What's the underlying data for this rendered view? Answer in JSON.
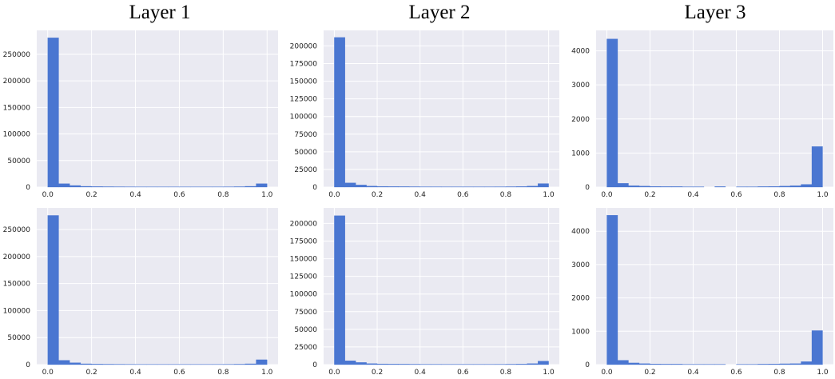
{
  "column_titles": [
    "Layer 1",
    "Layer 2",
    "Layer 3"
  ],
  "colors": {
    "bar": "#4a76d1",
    "plot_bg": "#eaeaf2",
    "grid": "#ffffff"
  },
  "chart_data": [
    {
      "type": "bar",
      "title": "",
      "xlabel": "",
      "ylabel": "",
      "grid": true,
      "bin_edges": [
        0.0,
        0.05,
        0.1,
        0.15,
        0.2,
        0.25,
        0.3,
        0.35,
        0.4,
        0.45,
        0.5,
        0.55,
        0.6,
        0.65,
        0.7,
        0.75,
        0.8,
        0.85,
        0.9,
        0.95,
        1.0
      ],
      "values": [
        281000,
        6500,
        3000,
        1500,
        1000,
        800,
        700,
        600,
        500,
        500,
        450,
        450,
        450,
        450,
        450,
        500,
        600,
        800,
        1500,
        6500
      ],
      "ylim": [
        0,
        295000
      ],
      "xlim": [
        -0.05,
        1.05
      ],
      "xticks": [
        0.0,
        0.2,
        0.4,
        0.6,
        0.8,
        1.0
      ],
      "xtick_labels": [
        "0.0",
        "0.2",
        "0.4",
        "0.6",
        "0.8",
        "1.0"
      ],
      "yticks": [
        0,
        50000,
        100000,
        150000,
        200000,
        250000
      ],
      "ytick_labels": [
        "0",
        "50000",
        "100000",
        "150000",
        "200000",
        "250000"
      ]
    },
    {
      "type": "bar",
      "title": "",
      "xlabel": "",
      "ylabel": "",
      "grid": true,
      "bin_edges": [
        0.0,
        0.05,
        0.1,
        0.15,
        0.2,
        0.25,
        0.3,
        0.35,
        0.4,
        0.45,
        0.5,
        0.55,
        0.6,
        0.65,
        0.7,
        0.75,
        0.8,
        0.85,
        0.9,
        0.95,
        1.0
      ],
      "values": [
        212000,
        6000,
        3000,
        1500,
        1000,
        800,
        700,
        600,
        500,
        500,
        450,
        450,
        450,
        450,
        450,
        500,
        600,
        800,
        1500,
        5000
      ],
      "ylim": [
        0,
        222000
      ],
      "xlim": [
        -0.05,
        1.05
      ],
      "xticks": [
        0.0,
        0.2,
        0.4,
        0.6,
        0.8,
        1.0
      ],
      "xtick_labels": [
        "0.0",
        "0.2",
        "0.4",
        "0.6",
        "0.8",
        "1.0"
      ],
      "yticks": [
        0,
        25000,
        50000,
        75000,
        100000,
        125000,
        150000,
        175000,
        200000
      ],
      "ytick_labels": [
        "0",
        "25000",
        "50000",
        "75000",
        "100000",
        "125000",
        "150000",
        "175000",
        "200000"
      ]
    },
    {
      "type": "bar",
      "title": "",
      "xlabel": "",
      "ylabel": "",
      "grid": true,
      "bin_edges": [
        0.0,
        0.05,
        0.1,
        0.15,
        0.2,
        0.25,
        0.3,
        0.35,
        0.4,
        0.45,
        0.5,
        0.55,
        0.6,
        0.65,
        0.7,
        0.75,
        0.8,
        0.85,
        0.9,
        0.95,
        1.0
      ],
      "values": [
        4350,
        110,
        40,
        30,
        20,
        15,
        15,
        10,
        10,
        0,
        15,
        0,
        10,
        10,
        15,
        20,
        30,
        40,
        80,
        1190
      ],
      "ylim": [
        0,
        4600
      ],
      "xlim": [
        -0.05,
        1.05
      ],
      "xticks": [
        0.0,
        0.2,
        0.4,
        0.6,
        0.8,
        1.0
      ],
      "xtick_labels": [
        "0.0",
        "0.2",
        "0.4",
        "0.6",
        "0.8",
        "1.0"
      ],
      "yticks": [
        0,
        1000,
        2000,
        3000,
        4000
      ],
      "ytick_labels": [
        "0",
        "1000",
        "2000",
        "3000",
        "4000"
      ]
    },
    {
      "type": "bar",
      "title": "",
      "xlabel": "",
      "ylabel": "",
      "grid": true,
      "bin_edges": [
        0.0,
        0.05,
        0.1,
        0.15,
        0.2,
        0.25,
        0.3,
        0.35,
        0.4,
        0.45,
        0.5,
        0.55,
        0.6,
        0.65,
        0.7,
        0.75,
        0.8,
        0.85,
        0.9,
        0.95,
        1.0
      ],
      "values": [
        276000,
        8000,
        3500,
        1500,
        1000,
        800,
        700,
        600,
        500,
        500,
        450,
        450,
        450,
        450,
        450,
        500,
        600,
        800,
        1500,
        9000
      ],
      "ylim": [
        0,
        290000
      ],
      "xlim": [
        -0.05,
        1.05
      ],
      "xticks": [
        0.0,
        0.2,
        0.4,
        0.6,
        0.8,
        1.0
      ],
      "xtick_labels": [
        "0.0",
        "0.2",
        "0.4",
        "0.6",
        "0.8",
        "1.0"
      ],
      "yticks": [
        0,
        50000,
        100000,
        150000,
        200000,
        250000
      ],
      "ytick_labels": [
        "0",
        "50000",
        "100000",
        "150000",
        "200000",
        "250000"
      ]
    },
    {
      "type": "bar",
      "title": "",
      "xlabel": "",
      "ylabel": "",
      "grid": true,
      "bin_edges": [
        0.0,
        0.05,
        0.1,
        0.15,
        0.2,
        0.25,
        0.3,
        0.35,
        0.4,
        0.45,
        0.5,
        0.55,
        0.6,
        0.65,
        0.7,
        0.75,
        0.8,
        0.85,
        0.9,
        0.95,
        1.0
      ],
      "values": [
        211000,
        5500,
        3000,
        1500,
        1000,
        800,
        700,
        600,
        500,
        500,
        450,
        450,
        450,
        450,
        450,
        500,
        600,
        800,
        1500,
        5000
      ],
      "ylim": [
        0,
        222000
      ],
      "xlim": [
        -0.05,
        1.05
      ],
      "xticks": [
        0.0,
        0.2,
        0.4,
        0.6,
        0.8,
        1.0
      ],
      "xtick_labels": [
        "0.0",
        "0.2",
        "0.4",
        "0.6",
        "0.8",
        "1.0"
      ],
      "yticks": [
        0,
        25000,
        50000,
        75000,
        100000,
        125000,
        150000,
        175000,
        200000
      ],
      "ytick_labels": [
        "0",
        "25000",
        "50000",
        "75000",
        "100000",
        "125000",
        "150000",
        "175000",
        "200000"
      ]
    },
    {
      "type": "bar",
      "title": "",
      "xlabel": "",
      "ylabel": "",
      "grid": true,
      "bin_edges": [
        0.0,
        0.05,
        0.1,
        0.15,
        0.2,
        0.25,
        0.3,
        0.35,
        0.4,
        0.45,
        0.5,
        0.55,
        0.6,
        0.65,
        0.7,
        0.75,
        0.8,
        0.85,
        0.9,
        0.95,
        1.0
      ],
      "values": [
        4480,
        130,
        50,
        30,
        20,
        15,
        15,
        10,
        10,
        10,
        10,
        0,
        10,
        10,
        15,
        20,
        25,
        30,
        90,
        1020
      ],
      "ylim": [
        0,
        4700
      ],
      "xlim": [
        -0.05,
        1.05
      ],
      "xticks": [
        0.0,
        0.2,
        0.4,
        0.6,
        0.8,
        1.0
      ],
      "xtick_labels": [
        "0.0",
        "0.2",
        "0.4",
        "0.6",
        "0.8",
        "1.0"
      ],
      "yticks": [
        0,
        1000,
        2000,
        3000,
        4000
      ],
      "ytick_labels": [
        "0",
        "1000",
        "2000",
        "3000",
        "4000"
      ]
    }
  ]
}
